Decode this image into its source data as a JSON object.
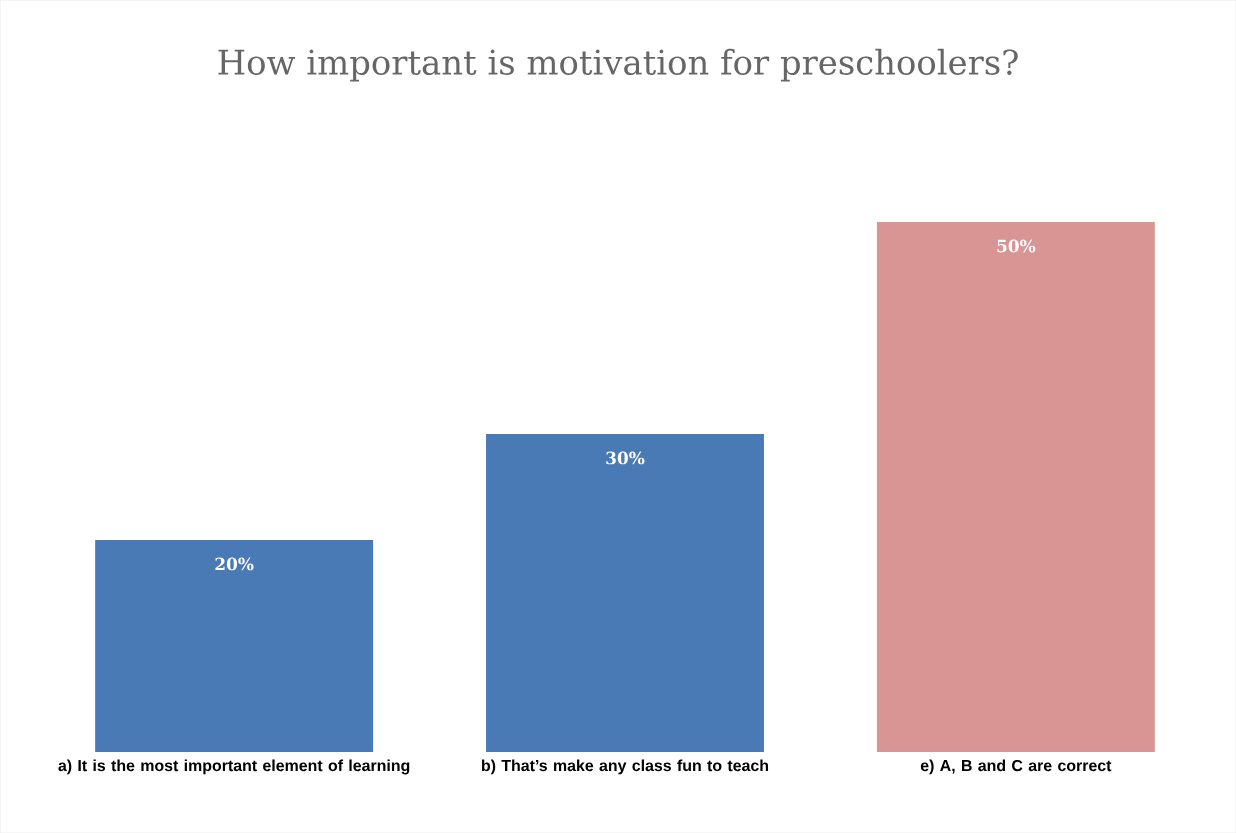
{
  "chart_data": {
    "type": "bar",
    "title": "How important is motivation for preschoolers?",
    "categories": [
      "a) It is the most important element of learning",
      "b) That’s make any class fun to teach",
      "e) A, B and C are correct"
    ],
    "values": [
      20,
      30,
      50
    ],
    "value_labels": [
      "20%",
      "30%",
      "50%"
    ],
    "colors": [
      "#4a7ab6",
      "#4a7ab6",
      "#d99594"
    ]
  }
}
